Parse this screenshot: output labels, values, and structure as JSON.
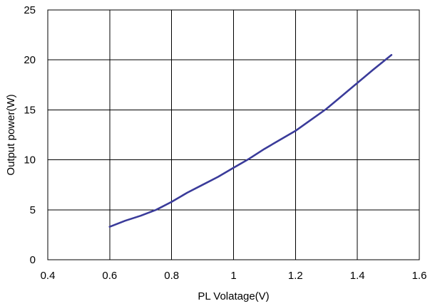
{
  "chart_data": {
    "type": "line",
    "title": "",
    "xlabel": "PL Volatage(V)",
    "ylabel": "Output power(W)",
    "xlim": [
      0.4,
      1.6
    ],
    "ylim": [
      0,
      25
    ],
    "xticks": [
      0.4,
      0.6,
      0.8,
      1.0,
      1.2,
      1.4,
      1.6
    ],
    "xtick_labels": [
      "0.4",
      "0.6",
      "0.8",
      "1",
      "1.2",
      "1.4",
      "1.6"
    ],
    "yticks": [
      0,
      5,
      10,
      15,
      20,
      25
    ],
    "ytick_labels": [
      "0",
      "5",
      "10",
      "15",
      "20",
      "25"
    ],
    "grid": true,
    "legend": false,
    "series": [
      {
        "color": "#3a3b9a",
        "x": [
          0.6,
          0.65,
          0.7,
          0.75,
          0.8,
          0.85,
          0.9,
          0.95,
          1.0,
          1.05,
          1.1,
          1.15,
          1.2,
          1.25,
          1.3,
          1.35,
          1.4,
          1.45,
          1.51
        ],
        "y": [
          3.3,
          3.9,
          4.4,
          5.0,
          5.8,
          6.7,
          7.5,
          8.3,
          9.2,
          10.1,
          11.1,
          12.0,
          12.9,
          14.0,
          15.1,
          16.4,
          17.7,
          19.0,
          20.5
        ]
      }
    ]
  }
}
